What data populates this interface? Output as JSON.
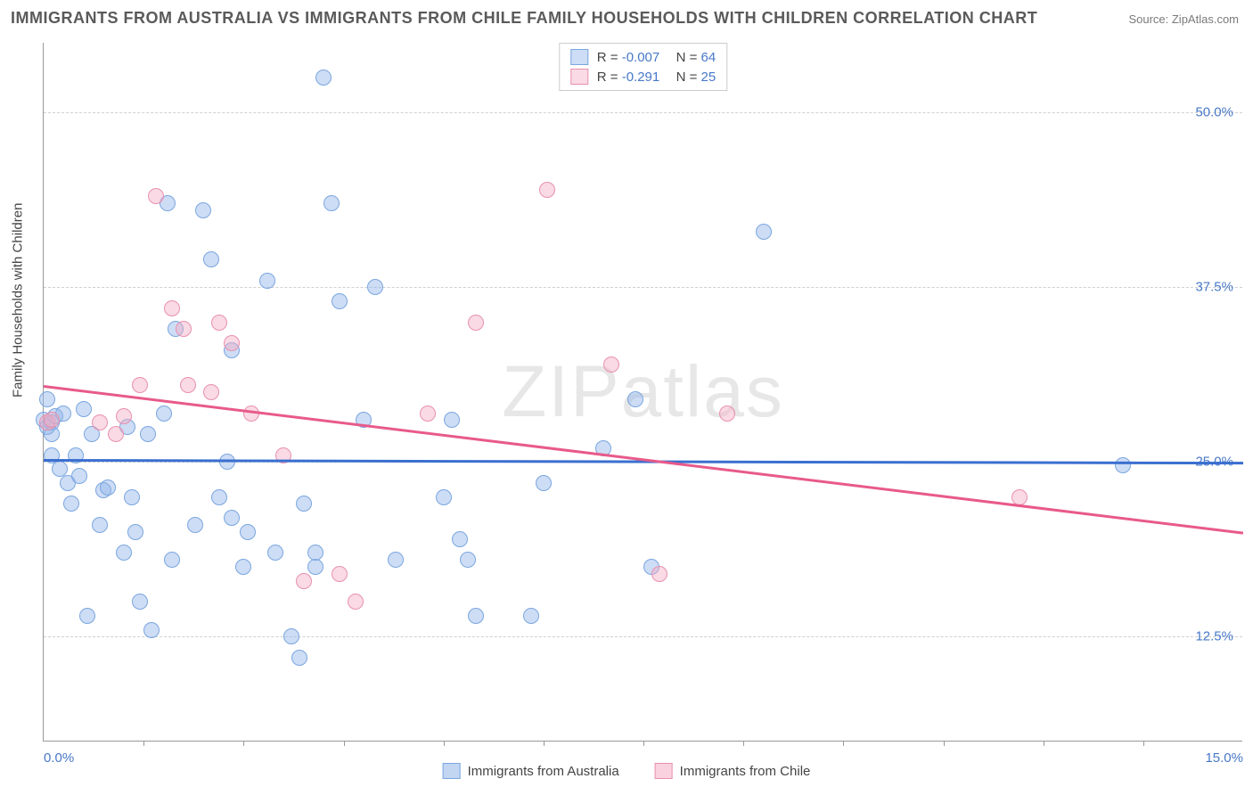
{
  "title": "IMMIGRANTS FROM AUSTRALIA VS IMMIGRANTS FROM CHILE FAMILY HOUSEHOLDS WITH CHILDREN CORRELATION CHART",
  "source": "Source: ZipAtlas.com",
  "watermark": "ZIPatlas",
  "ylabel": "Family Households with Children",
  "chart": {
    "type": "scatter",
    "background_color": "#ffffff",
    "grid_color": "#d0d0d0",
    "border_color": "#999999",
    "xlim": [
      0.0,
      15.0
    ],
    "ylim": [
      5.0,
      55.0
    ],
    "xticks": [
      0.0,
      15.0
    ],
    "xtick_labels": [
      "0.0%",
      "15.0%"
    ],
    "yticks": [
      12.5,
      25.0,
      37.5,
      50.0
    ],
    "ytick_labels": [
      "12.5%",
      "25.0%",
      "37.5%",
      "50.0%"
    ],
    "xtick_minor": [
      1.25,
      2.5,
      3.75,
      5.0,
      6.25,
      7.5,
      8.75,
      10.0,
      11.25,
      12.5,
      13.75
    ],
    "tick_label_color": "#4878c8",
    "label_fontsize": 15,
    "title_fontsize": 18,
    "title_color": "#5a5a5a",
    "point_radius": 9,
    "point_stroke": 1.5,
    "watermark_font": 82,
    "watermark_color": "rgba(120,120,120,0.18)"
  },
  "series": [
    {
      "name": "Immigrants from Australia",
      "fill": "rgba(144,180,232,0.45)",
      "stroke": "#7aa6e0",
      "R": "-0.007",
      "N": "64",
      "trend": {
        "x1": 0.0,
        "y1": 25.2,
        "x2": 15.0,
        "y2": 25.0,
        "color": "#3a6fd0",
        "width": 2.5
      },
      "points": [
        [
          0.0,
          28.0
        ],
        [
          0.05,
          27.5
        ],
        [
          0.05,
          29.5
        ],
        [
          0.1,
          27.8
        ],
        [
          0.1,
          25.5
        ],
        [
          0.1,
          27.0
        ],
        [
          0.15,
          28.3
        ],
        [
          0.2,
          24.5
        ],
        [
          0.25,
          28.5
        ],
        [
          0.3,
          23.5
        ],
        [
          0.35,
          22.0
        ],
        [
          0.4,
          25.5
        ],
        [
          0.45,
          24.0
        ],
        [
          0.5,
          28.8
        ],
        [
          0.55,
          14.0
        ],
        [
          0.6,
          27.0
        ],
        [
          0.7,
          20.5
        ],
        [
          0.75,
          23.0
        ],
        [
          0.8,
          23.2
        ],
        [
          1.0,
          18.5
        ],
        [
          1.05,
          27.5
        ],
        [
          1.1,
          22.5
        ],
        [
          1.15,
          20.0
        ],
        [
          1.2,
          15.0
        ],
        [
          1.3,
          27.0
        ],
        [
          1.35,
          13.0
        ],
        [
          1.5,
          28.5
        ],
        [
          1.55,
          43.5
        ],
        [
          1.6,
          18.0
        ],
        [
          1.65,
          34.5
        ],
        [
          1.9,
          20.5
        ],
        [
          2.0,
          43.0
        ],
        [
          2.1,
          39.5
        ],
        [
          2.2,
          22.5
        ],
        [
          2.3,
          25.0
        ],
        [
          2.35,
          33.0
        ],
        [
          2.35,
          21.0
        ],
        [
          2.5,
          17.5
        ],
        [
          2.55,
          20.0
        ],
        [
          2.8,
          38.0
        ],
        [
          2.9,
          18.5
        ],
        [
          3.1,
          12.5
        ],
        [
          3.2,
          11.0
        ],
        [
          3.25,
          22.0
        ],
        [
          3.4,
          17.5
        ],
        [
          3.4,
          18.5
        ],
        [
          3.5,
          52.5
        ],
        [
          3.6,
          43.5
        ],
        [
          3.7,
          36.5
        ],
        [
          4.0,
          28.0
        ],
        [
          4.15,
          37.5
        ],
        [
          4.4,
          18.0
        ],
        [
          5.0,
          22.5
        ],
        [
          5.1,
          28.0
        ],
        [
          5.2,
          19.5
        ],
        [
          5.3,
          18.0
        ],
        [
          5.4,
          14.0
        ],
        [
          6.1,
          14.0
        ],
        [
          6.25,
          23.5
        ],
        [
          7.0,
          26.0
        ],
        [
          7.4,
          29.5
        ],
        [
          7.6,
          17.5
        ],
        [
          9.0,
          41.5
        ],
        [
          13.5,
          24.8
        ]
      ]
    },
    {
      "name": "Immigrants from Chile",
      "fill": "rgba(244,172,196,0.45)",
      "stroke": "#e890b0",
      "R": "-0.291",
      "N": "25",
      "trend": {
        "x1": 0.0,
        "y1": 30.5,
        "x2": 15.0,
        "y2": 20.0,
        "color": "#e85a8a",
        "width": 2.5
      },
      "points": [
        [
          0.05,
          27.8
        ],
        [
          0.1,
          28.0
        ],
        [
          0.7,
          27.8
        ],
        [
          0.9,
          27.0
        ],
        [
          1.0,
          28.3
        ],
        [
          1.2,
          30.5
        ],
        [
          1.4,
          44.0
        ],
        [
          1.6,
          36.0
        ],
        [
          1.75,
          34.5
        ],
        [
          1.8,
          30.5
        ],
        [
          2.1,
          30.0
        ],
        [
          2.2,
          35.0
        ],
        [
          2.35,
          33.5
        ],
        [
          2.6,
          28.5
        ],
        [
          3.0,
          25.5
        ],
        [
          3.25,
          16.5
        ],
        [
          3.7,
          17.0
        ],
        [
          3.9,
          15.0
        ],
        [
          4.8,
          28.5
        ],
        [
          5.4,
          35.0
        ],
        [
          6.3,
          44.5
        ],
        [
          7.1,
          32.0
        ],
        [
          7.7,
          17.0
        ],
        [
          8.55,
          28.5
        ],
        [
          12.2,
          22.5
        ]
      ]
    }
  ],
  "legend_top": {
    "R_label": "R =",
    "N_label": "N =",
    "stat_color": "#4878c8"
  },
  "legend_bottom": [
    {
      "label": "Immigrants from Australia",
      "fill": "rgba(144,180,232,0.55)",
      "stroke": "#7aa6e0"
    },
    {
      "label": "Immigrants from Chile",
      "fill": "rgba(244,172,196,0.55)",
      "stroke": "#e890b0"
    }
  ]
}
